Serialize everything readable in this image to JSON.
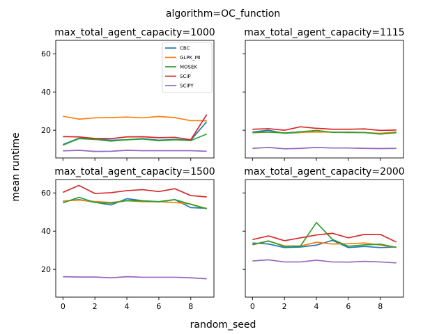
{
  "suptitle": "algorithm=OC_function",
  "xlabel": "random_seed",
  "ylabel": "mean runtime",
  "colors": {
    "CBC": "#1f77b4",
    "GLPK_MI": "#ff7f0e",
    "MOSEK": "#2ca02c",
    "SCIP": "#d62728",
    "SCIPY": "#9467bd"
  },
  "legend": [
    "CBC",
    "GLPK_MI",
    "MOSEK",
    "SCIP",
    "SCIPY"
  ],
  "chart_data": [
    {
      "type": "line",
      "title": "max_total_agent_capacity=1000",
      "x": [
        0,
        1,
        2,
        3,
        4,
        5,
        6,
        7,
        8,
        9
      ],
      "xlim": [
        -0.45,
        9.45
      ],
      "ylim": [
        5.5,
        67
      ],
      "xticks": [
        0,
        2,
        4,
        6,
        8
      ],
      "yticks": [
        20,
        40,
        60
      ],
      "show_xticklabels": false,
      "show_yticklabels": true,
      "legend_position": "upper-right",
      "series": [
        {
          "name": "CBC",
          "values": [
            12.5,
            15.8,
            15.5,
            14.8,
            15.0,
            15.6,
            14.8,
            15.2,
            14.8,
            24.5
          ]
        },
        {
          "name": "GLPK_MI",
          "values": [
            27.3,
            25.8,
            26.5,
            26.6,
            26.9,
            26.5,
            27.2,
            26.6,
            25.0,
            25.0
          ]
        },
        {
          "name": "MOSEK",
          "values": [
            12.2,
            15.6,
            15.2,
            14.3,
            15.0,
            15.4,
            14.5,
            15.0,
            14.6,
            18.0
          ]
        },
        {
          "name": "SCIP",
          "values": [
            16.7,
            16.5,
            15.7,
            15.6,
            16.5,
            16.6,
            16.1,
            16.3,
            15.0,
            28.2
          ]
        },
        {
          "name": "SCIPY",
          "values": [
            9.2,
            9.5,
            8.9,
            9.0,
            9.5,
            9.3,
            9.3,
            9.3,
            9.3,
            9.0
          ]
        }
      ]
    },
    {
      "type": "line",
      "title": "max_total_agent_capacity=1115",
      "x": [
        0,
        1,
        2,
        3,
        4,
        5,
        6,
        7,
        8,
        9
      ],
      "xlim": [
        -0.45,
        9.45
      ],
      "ylim": [
        5.5,
        67
      ],
      "xticks": [
        0,
        2,
        4,
        6,
        8
      ],
      "yticks": [
        20,
        40,
        60
      ],
      "show_xticklabels": false,
      "show_yticklabels": false,
      "series": [
        {
          "name": "CBC",
          "values": [
            19.0,
            20.0,
            18.4,
            18.8,
            19.8,
            18.9,
            18.8,
            18.8,
            18.0,
            19.0
          ]
        },
        {
          "name": "GLPK_MI",
          "values": [
            18.7,
            19.0,
            18.6,
            18.9,
            19.1,
            19.0,
            18.8,
            18.8,
            18.4,
            19.0
          ]
        },
        {
          "name": "MOSEK",
          "values": [
            18.8,
            19.1,
            18.5,
            19.2,
            19.9,
            18.9,
            19.0,
            18.8,
            18.0,
            18.7
          ]
        },
        {
          "name": "SCIP",
          "values": [
            20.5,
            20.8,
            20.0,
            21.8,
            21.0,
            20.5,
            20.5,
            20.7,
            19.9,
            20.1
          ]
        },
        {
          "name": "SCIPY",
          "values": [
            10.5,
            11.0,
            10.3,
            10.5,
            11.0,
            10.7,
            10.7,
            10.5,
            10.4,
            10.5
          ]
        }
      ]
    },
    {
      "type": "line",
      "title": "max_total_agent_capacity=1500",
      "x": [
        0,
        1,
        2,
        3,
        4,
        5,
        6,
        7,
        8,
        9
      ],
      "xlim": [
        -0.45,
        9.45
      ],
      "ylim": [
        5.5,
        67
      ],
      "xticks": [
        0,
        2,
        4,
        6,
        8
      ],
      "yticks": [
        20,
        40,
        60
      ],
      "show_xticklabels": true,
      "show_yticklabels": true,
      "series": [
        {
          "name": "CBC",
          "values": [
            55.7,
            56.5,
            55.1,
            53.7,
            57.0,
            55.9,
            55.4,
            56.5,
            52.3,
            52.0
          ]
        },
        {
          "name": "GLPK_MI",
          "values": [
            55.8,
            56.2,
            55.5,
            55.0,
            55.9,
            55.4,
            55.4,
            55.0,
            54.2,
            51.8
          ]
        },
        {
          "name": "MOSEK",
          "values": [
            54.8,
            57.7,
            55.0,
            54.6,
            56.0,
            55.8,
            55.4,
            56.5,
            54.0,
            51.7
          ]
        },
        {
          "name": "SCIP",
          "values": [
            60.3,
            63.9,
            59.7,
            60.1,
            61.2,
            61.7,
            60.7,
            62.2,
            58.6,
            57.9
          ]
        },
        {
          "name": "SCIPY",
          "values": [
            16.2,
            16.0,
            16.0,
            15.6,
            16.2,
            15.9,
            15.9,
            15.9,
            15.6,
            15.1
          ]
        }
      ]
    },
    {
      "type": "line",
      "title": "max_total_agent_capacity=2000",
      "x": [
        0,
        1,
        2,
        3,
        4,
        5,
        6,
        7,
        8,
        9
      ],
      "xlim": [
        -0.45,
        9.45
      ],
      "ylim": [
        5.5,
        67
      ],
      "xticks": [
        0,
        2,
        4,
        6,
        8
      ],
      "yticks": [
        20,
        40,
        60
      ],
      "show_xticklabels": true,
      "show_yticklabels": false,
      "series": [
        {
          "name": "CBC",
          "values": [
            33.8,
            33.3,
            31.4,
            31.7,
            32.7,
            35.2,
            31.4,
            32.0,
            31.4,
            31.7
          ]
        },
        {
          "name": "GLPK_MI",
          "values": [
            32.8,
            34.8,
            32.3,
            32.2,
            34.2,
            33.3,
            33.4,
            33.8,
            32.7,
            31.5
          ]
        },
        {
          "name": "MOSEK",
          "values": [
            33.0,
            34.9,
            32.0,
            32.2,
            44.5,
            35.7,
            32.1,
            32.8,
            33.2,
            31.5
          ]
        },
        {
          "name": "SCIP",
          "values": [
            35.6,
            37.5,
            35.0,
            36.5,
            38.0,
            38.9,
            36.5,
            38.3,
            38.3,
            34.3
          ]
        },
        {
          "name": "SCIPY",
          "values": [
            24.4,
            25.0,
            23.9,
            23.9,
            24.8,
            23.9,
            23.8,
            24.2,
            23.9,
            23.4
          ]
        }
      ]
    }
  ]
}
